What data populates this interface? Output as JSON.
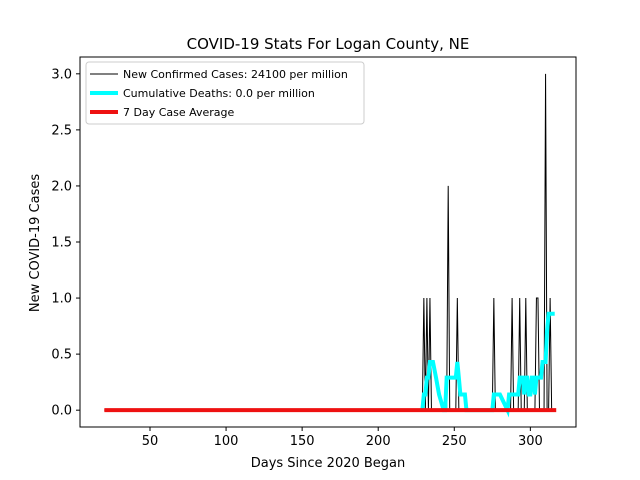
{
  "chart_data": {
    "type": "line",
    "title": "COVID-19 Stats For Logan County, NE",
    "xlabel": "Days Since 2020 Began",
    "ylabel": "New COVID-19 Cases",
    "xlim": [
      4,
      330
    ],
    "ylim": [
      -0.15,
      3.15
    ],
    "xticks": [
      50,
      100,
      150,
      200,
      250,
      300
    ],
    "yticks": [
      0.0,
      0.5,
      1.0,
      1.5,
      2.0,
      2.5,
      3.0
    ],
    "xtick_labels": [
      "50",
      "100",
      "150",
      "200",
      "250",
      "300"
    ],
    "ytick_labels": [
      "0.0",
      "0.5",
      "1.0",
      "1.5",
      "2.0",
      "2.5",
      "3.0"
    ],
    "legend_position": "top-left",
    "grid": false,
    "series": [
      {
        "name": "New Confirmed Cases: 24100 per million",
        "color": "#000000",
        "x": [
          20,
          229,
          230,
          231,
          232,
          233,
          234,
          235,
          236,
          245,
          246,
          247,
          251,
          252,
          253,
          275,
          276,
          277,
          287,
          288,
          289,
          292,
          293,
          294,
          296,
          297,
          298,
          303,
          304,
          305,
          306,
          309,
          310,
          311,
          312,
          313,
          314
        ],
        "y": [
          0,
          0,
          1,
          0,
          1,
          0,
          1,
          0,
          0,
          0,
          2,
          0,
          0,
          1,
          0,
          0,
          1,
          0,
          0,
          1,
          0,
          0,
          1,
          0,
          0,
          1,
          0,
          0,
          1,
          1,
          0,
          0,
          3,
          0,
          0,
          1,
          0
        ]
      },
      {
        "name": "Cumulative Deaths: 0.0 per million",
        "color": "#00ffff",
        "x": [
          229,
          230,
          231,
          232,
          233,
          234,
          235,
          236,
          238,
          240,
          243,
          244,
          245,
          248,
          249,
          251,
          252,
          253,
          254,
          255,
          256,
          257,
          258,
          275,
          276,
          277,
          278,
          280,
          285,
          286,
          288,
          289,
          290,
          291,
          292,
          293,
          294,
          295,
          296,
          297,
          298,
          299,
          300,
          301,
          302,
          303,
          304,
          305,
          306,
          307,
          308,
          309,
          310,
          311,
          312,
          313,
          314,
          315,
          316
        ],
        "y": [
          0,
          0.14,
          0.14,
          0.29,
          0.29,
          0.43,
          0.43,
          0.43,
          0.29,
          0.14,
          0,
          0,
          0.29,
          0.29,
          0.29,
          0.29,
          0.43,
          0.29,
          0.14,
          0.14,
          0.14,
          0.14,
          0,
          0,
          0.14,
          0.14,
          0.14,
          0.14,
          0,
          0.14,
          0.14,
          0.14,
          0.14,
          0.14,
          0.14,
          0.29,
          0.29,
          0.29,
          0.14,
          0.29,
          0.29,
          0.14,
          0.14,
          0.29,
          0.29,
          0.14,
          0.29,
          0.29,
          0.29,
          0.29,
          0.43,
          0.43,
          0.43,
          0.71,
          0.86,
          0.86,
          0.86,
          0.86,
          0.86
        ]
      },
      {
        "name": "7 Day Case Average",
        "color": "#ee1111",
        "x": [
          20,
          317
        ],
        "y": [
          0,
          0
        ]
      }
    ]
  }
}
